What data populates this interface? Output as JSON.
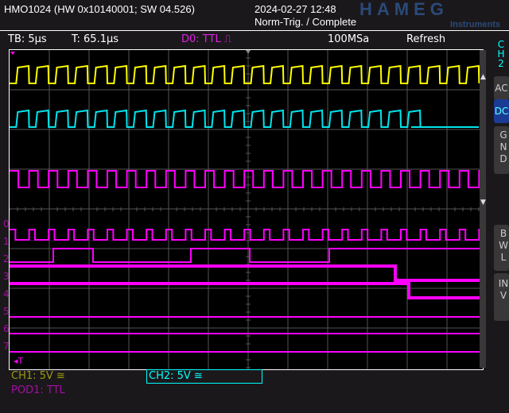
{
  "header": {
    "device": "HMO1024 (HW 0x10140001; SW 04.526)",
    "datetime": "2024-02-27 12:48",
    "status": "Norm-Trig. / Complete",
    "logo": "HAMEG",
    "logo_sub": "Instruments"
  },
  "info": {
    "timebase": "TB: 5µs",
    "trigger_time": "T: 65.1µs",
    "trigger_source": "D0: TTL ⎍",
    "sample_rate": "100MSa",
    "mode": "Refresh"
  },
  "side": {
    "channel": "CH2",
    "ac": "AC",
    "dc": "DC",
    "gnd": "GND",
    "bwl": "BWL",
    "inv": "INV",
    "active": "DC"
  },
  "channels": {
    "ch1": "CH1: 5V ≅",
    "ch2": "CH2: 5V ≅",
    "pod1": "POD1: TTL"
  },
  "digital_labels": [
    "0",
    "1",
    "2",
    "3",
    "4",
    "5",
    "6",
    "7"
  ],
  "trigger_marker": "T",
  "colors": {
    "ch1": "#ffff00",
    "ch2": "#00e5ee",
    "pod": "#ff00ff",
    "grid": "#555555",
    "accent": "#1a3c94"
  }
}
